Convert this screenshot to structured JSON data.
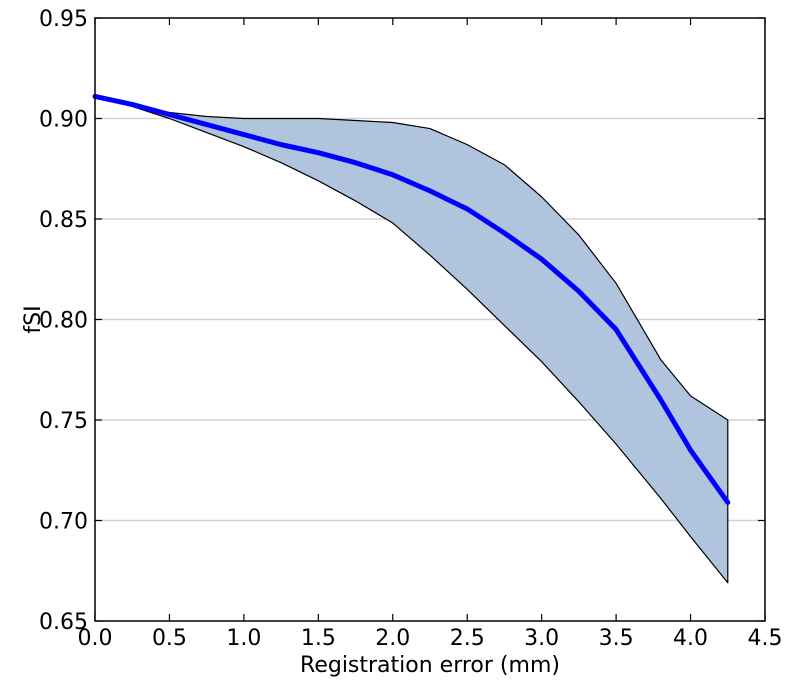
{
  "chart_data": {
    "type": "line",
    "title": "",
    "xlabel": "Registration error (mm)",
    "ylabel": "fSI",
    "xlim": [
      0.0,
      4.5
    ],
    "ylim": [
      0.65,
      0.95
    ],
    "xticks": [
      0.0,
      0.5,
      1.0,
      1.5,
      2.0,
      2.5,
      3.0,
      3.5,
      4.0,
      4.5
    ],
    "xtick_labels": [
      "0.0",
      "0.5",
      "1.0",
      "1.5",
      "2.0",
      "2.5",
      "3.0",
      "3.5",
      "4.0",
      "4.5"
    ],
    "yticks": [
      0.65,
      0.7,
      0.75,
      0.8,
      0.85,
      0.9,
      0.95
    ],
    "ytick_labels": [
      "0.65",
      "0.70",
      "0.75",
      "0.80",
      "0.85",
      "0.90",
      "0.95"
    ],
    "grid": "horizontal",
    "legend": "none",
    "series": [
      {
        "x": [
          0.0,
          0.25,
          0.5,
          0.75,
          1.0,
          1.25,
          1.5,
          1.75,
          2.0,
          2.25,
          2.5,
          2.75,
          3.0,
          3.25,
          3.5,
          3.8,
          4.0,
          4.25
        ],
        "values": [
          0.911,
          0.907,
          0.902,
          0.897,
          0.892,
          0.887,
          0.883,
          0.878,
          0.872,
          0.864,
          0.855,
          0.843,
          0.83,
          0.814,
          0.795,
          0.76,
          0.735,
          0.709
        ],
        "color": "#0000ff"
      }
    ],
    "band": {
      "x": [
        0.0,
        0.25,
        0.5,
        0.75,
        1.0,
        1.25,
        1.5,
        1.75,
        2.0,
        2.25,
        2.5,
        2.75,
        3.0,
        3.25,
        3.5,
        3.8,
        4.0,
        4.25
      ],
      "upper": [
        0.911,
        0.907,
        0.903,
        0.901,
        0.9,
        0.9,
        0.9,
        0.899,
        0.898,
        0.895,
        0.887,
        0.877,
        0.861,
        0.842,
        0.818,
        0.78,
        0.762,
        0.75
      ],
      "lower": [
        0.911,
        0.906,
        0.9,
        0.893,
        0.886,
        0.878,
        0.869,
        0.859,
        0.848,
        0.832,
        0.815,
        0.797,
        0.779,
        0.759,
        0.738,
        0.711,
        0.692,
        0.669
      ],
      "fill_color": "#b0c4de",
      "edge_color": "#000000"
    }
  }
}
